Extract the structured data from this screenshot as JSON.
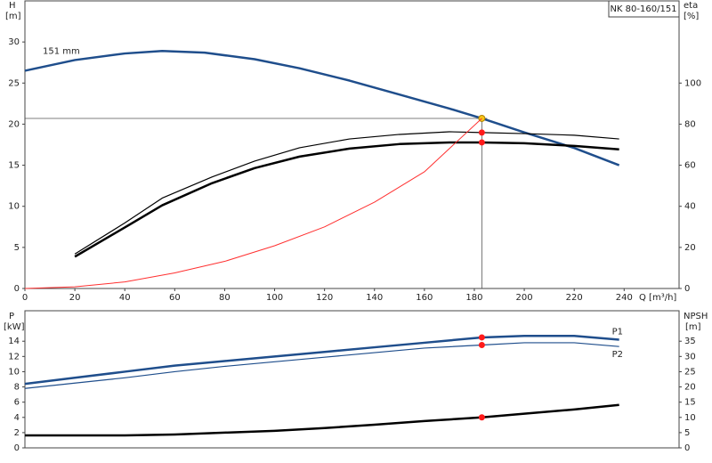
{
  "chart_data": [
    {
      "type": "line",
      "title": "NK 80-160/151",
      "y_label": "H",
      "y_unit": "[m]",
      "y2_label": "eta",
      "y2_unit": "[%]",
      "x_label": "Q [m³/h]",
      "xlim": [
        0,
        262
      ],
      "xticks": [
        0,
        20,
        40,
        60,
        80,
        100,
        120,
        140,
        160,
        180,
        200,
        220,
        240
      ],
      "ylim": [
        0,
        35
      ],
      "yticks": [
        0,
        5,
        10,
        15,
        20,
        25,
        30
      ],
      "y2lim": [
        0,
        140
      ],
      "y2ticks": [
        0,
        20,
        40,
        60,
        80,
        100
      ],
      "duty_x": 183,
      "duty_y": 20.7,
      "series": [
        {
          "name": "151 mm",
          "color": "#1f4e8c",
          "width": 2.5,
          "marker_color": "#f5c518",
          "x": [
            0,
            20,
            40,
            55,
            72,
            92,
            110,
            130,
            150,
            170,
            183,
            200,
            220,
            238
          ],
          "values": [
            26.5,
            27.8,
            28.6,
            28.9,
            28.7,
            27.9,
            26.8,
            25.3,
            23.6,
            21.9,
            20.7,
            19.0,
            17.1,
            15.0
          ]
        },
        {
          "color": "#000000",
          "width": 1.2,
          "axis": "y2",
          "marker_color": "#ff1a1a",
          "x": [
            20,
            40,
            55,
            75,
            92,
            110,
            130,
            150,
            170,
            183,
            200,
            220,
            238
          ],
          "values": [
            16.8,
            31.9,
            44,
            54.3,
            62,
            68.5,
            72.8,
            75,
            76.3,
            75.9,
            75.4,
            74.6,
            72.8
          ]
        },
        {
          "color": "#000000",
          "width": 2.5,
          "axis": "y2",
          "marker_color": "#ff1a1a",
          "x": [
            20,
            40,
            55,
            75,
            92,
            110,
            130,
            150,
            170,
            183,
            200,
            220,
            238
          ],
          "values": [
            15.5,
            29.7,
            40.5,
            51.3,
            58.6,
            64.2,
            68.1,
            70.3,
            71.1,
            71.1,
            70.7,
            69.4,
            67.7
          ]
        },
        {
          "color": "#ff3030",
          "width": 1,
          "x": [
            0,
            20,
            40,
            60,
            80,
            100,
            120,
            140,
            160,
            183
          ],
          "values": [
            0,
            0.2,
            0.8,
            1.9,
            3.3,
            5.2,
            7.5,
            10.5,
            14.2,
            20.7
          ]
        }
      ]
    },
    {
      "type": "line",
      "y_label": "P",
      "y_unit": "[kW]",
      "y2_label": "NPSH",
      "y2_unit": "[m]",
      "xlim": [
        0,
        262
      ],
      "ylim": [
        0,
        18
      ],
      "yticks": [
        0,
        2,
        4,
        6,
        8,
        10,
        12,
        14
      ],
      "y2lim": [
        0,
        45
      ],
      "y2ticks": [
        0,
        5,
        10,
        15,
        20,
        25,
        30,
        35
      ],
      "duty_x": 183,
      "series": [
        {
          "name": "P1",
          "color": "#1f4e8c",
          "width": 2.5,
          "marker_color": "#ff1a1a",
          "x": [
            0,
            20,
            40,
            60,
            80,
            100,
            120,
            140,
            160,
            183,
            200,
            220,
            238
          ],
          "values": [
            8.4,
            9.2,
            10,
            10.8,
            11.4,
            12,
            12.6,
            13.2,
            13.8,
            14.5,
            14.7,
            14.7,
            14.2
          ]
        },
        {
          "name": "P2",
          "color": "#1f4e8c",
          "width": 1.2,
          "marker_color": "#ff1a1a",
          "x": [
            0,
            20,
            40,
            60,
            80,
            100,
            120,
            140,
            160,
            183,
            200,
            220,
            238
          ],
          "values": [
            7.8,
            8.5,
            9.2,
            10,
            10.7,
            11.3,
            11.9,
            12.5,
            13.1,
            13.5,
            13.8,
            13.8,
            13.3
          ]
        },
        {
          "color": "#000000",
          "width": 2.5,
          "axis": "y2",
          "marker_color": "#ff1a1a",
          "x": [
            0,
            20,
            40,
            60,
            80,
            100,
            120,
            140,
            160,
            183,
            200,
            220,
            238
          ],
          "values": [
            4.1,
            4.1,
            4.1,
            4.4,
            5,
            5.6,
            6.5,
            7.6,
            8.8,
            10,
            11.2,
            12.6,
            14.1
          ]
        }
      ]
    }
  ]
}
